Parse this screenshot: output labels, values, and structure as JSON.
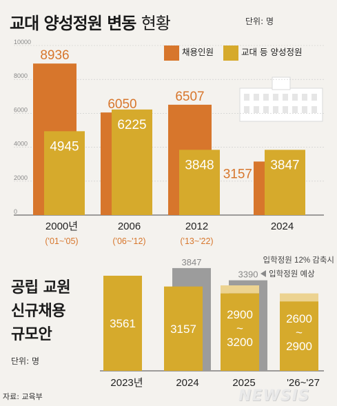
{
  "title_main": "교대 양성정원 변동",
  "title_sub": "현황",
  "unit": "단위: 명",
  "legend": [
    {
      "label": "채용인원",
      "color": "#d7762c"
    },
    {
      "label": "교대 등 양성정원",
      "color": "#d6aa2c"
    }
  ],
  "chart_data": [
    {
      "type": "bar",
      "title": "교대 양성정원 변동 현황",
      "ylim": [
        0,
        10000
      ],
      "yticks": [
        "10000",
        "8000",
        "6000",
        "4000",
        "2000",
        "0"
      ],
      "categories": [
        "2000년",
        "2006",
        "2012",
        "2024"
      ],
      "category_sublabels": [
        "('01~'05)",
        "('06~'12)",
        "('13~'22)",
        ""
      ],
      "series": [
        {
          "name": "채용인원",
          "values": [
            8936,
            6050,
            6507,
            3157
          ],
          "labels": [
            "8936",
            "6050",
            "6507",
            "3157"
          ]
        },
        {
          "name": "교대 등 양성정원",
          "values": [
            4945,
            6225,
            3848,
            3847
          ],
          "labels": [
            "4945",
            "6225",
            "3848",
            "3847"
          ]
        }
      ]
    },
    {
      "type": "bar",
      "title": "공립 교원 신규채용 규모안",
      "categories": [
        "2023년",
        "2024",
        "2025",
        "'26~'27"
      ],
      "bar_labels": [
        "3561",
        "3157",
        "2900\n~\n3200",
        "2600\n~\n2900"
      ],
      "values_low": [
        3561,
        3157,
        2900,
        2600
      ],
      "values_high": [
        3561,
        3157,
        3200,
        2900
      ],
      "quota": [
        null,
        3847,
        3390,
        null
      ],
      "quota_labels": [
        "",
        "3847",
        "3390",
        ""
      ],
      "annotations": [
        "입학정원 12% 감축시",
        "입학정원 예상"
      ]
    }
  ],
  "left_title": [
    "공립 교원",
    "신규채용",
    "규모안"
  ],
  "unit2": "단위: 명",
  "source": "자료: 교육부",
  "logo": "NEWSIS"
}
